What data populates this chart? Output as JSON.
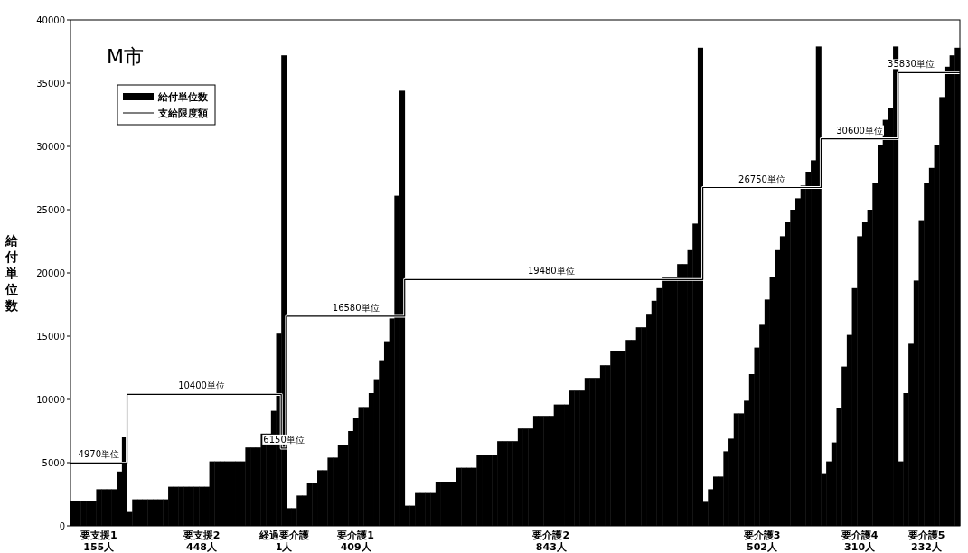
{
  "chart_data": {
    "type": "bar",
    "title": "M市",
    "ylabel": "給付単位数",
    "ylim": [
      0,
      40000
    ],
    "yticks": [
      0,
      5000,
      10000,
      15000,
      20000,
      25000,
      30000,
      35000,
      40000
    ],
    "legend": "top left",
    "categories": [
      null,
      null,
      null,
      null,
      null,
      "要支援1\n155人",
      null,
      null,
      null,
      null,
      null,
      null,
      null,
      null,
      null,
      null,
      null,
      null,
      null,
      null,
      null,
      null,
      null,
      null,
      null,
      "要支援2\n448人",
      null,
      null,
      null,
      null,
      null,
      null,
      null,
      null,
      null,
      null,
      null,
      null,
      null,
      null,
      null,
      "経過要介護\n1人",
      null,
      null,
      null,
      null,
      null,
      null,
      null,
      null,
      null,
      null,
      null,
      null,
      null,
      "要介護1\n409人",
      null,
      null,
      null,
      null,
      null,
      null,
      null,
      null,
      null,
      null,
      null,
      null,
      null,
      null,
      null,
      null,
      null,
      null,
      null,
      null,
      null,
      null,
      null,
      null,
      null,
      null,
      null,
      null,
      null,
      null,
      null,
      null,
      null,
      null,
      null,
      null,
      null,
      "要介護2\n843人",
      null,
      null,
      null,
      null,
      null,
      null,
      null,
      null,
      null,
      null,
      null,
      null,
      null,
      null,
      null,
      null,
      null,
      null,
      null,
      null,
      null,
      null,
      null,
      null,
      null,
      null,
      null,
      null,
      null,
      null,
      null,
      null,
      null,
      null,
      null,
      null,
      null,
      null,
      null,
      null,
      "要介護3\n502人",
      null,
      null,
      null,
      null,
      null,
      null,
      null,
      null,
      null,
      null,
      null,
      null,
      null,
      null,
      null,
      null,
      null,
      null,
      "要介護4\n310人",
      null,
      null,
      null,
      null,
      null,
      null,
      null,
      null,
      null,
      null,
      null,
      null,
      "要介護5\n232人",
      null,
      null,
      null,
      null,
      null,
      null
    ],
    "series": [
      {
        "name": "給付単位数",
        "color": "#000000",
        "values": [
          2000,
          2000,
          2000,
          2000,
          2000,
          2900,
          2900,
          2900,
          2900,
          4300,
          7000,
          1100,
          2100,
          2100,
          2100,
          2100,
          2100,
          2100,
          2100,
          3100,
          3100,
          3100,
          3100,
          3100,
          3100,
          3100,
          3100,
          5100,
          5100,
          5100,
          5100,
          5100,
          5100,
          5100,
          6200,
          6200,
          6200,
          7300,
          7300,
          9100,
          15200,
          37200,
          1400,
          1400,
          2400,
          2400,
          3400,
          3400,
          4400,
          4400,
          5400,
          5400,
          6400,
          6400,
          7500,
          8500,
          9400,
          9400,
          10500,
          11600,
          13100,
          14600,
          16400,
          26100,
          34400,
          1600,
          1600,
          2600,
          2600,
          2600,
          2600,
          3500,
          3500,
          3500,
          3500,
          4600,
          4600,
          4600,
          4600,
          5600,
          5600,
          5600,
          5600,
          6700,
          6700,
          6700,
          6700,
          7700,
          7700,
          7700,
          8700,
          8700,
          8700,
          8700,
          9600,
          9600,
          9600,
          10700,
          10700,
          10700,
          11700,
          11700,
          11700,
          12700,
          12700,
          13800,
          13800,
          13800,
          14700,
          14700,
          15700,
          15700,
          16700,
          17800,
          18800,
          19700,
          19700,
          19700,
          20700,
          20700,
          21800,
          23900,
          37800,
          1900,
          2900,
          3900,
          3900,
          5900,
          6900,
          8900,
          8900,
          9900,
          12000,
          14100,
          15900,
          17900,
          19700,
          21800,
          22900,
          24000,
          25000,
          25900,
          26900,
          28000,
          28900,
          37900,
          4100,
          5100,
          6600,
          9300,
          12600,
          15100,
          18800,
          22900,
          24000,
          25000,
          27100,
          30100,
          32100,
          33000,
          37900,
          5100,
          10500,
          14400,
          19400,
          24100,
          27100,
          28300,
          30100,
          33900,
          36300,
          37200,
          37800
        ]
      },
      {
        "name": "支給限度額",
        "type": "step",
        "color": "#000000",
        "values": [
          4970,
          4970,
          4970,
          4970,
          4970,
          4970,
          4970,
          4970,
          4970,
          4970,
          4970,
          10400,
          10400,
          10400,
          10400,
          10400,
          10400,
          10400,
          10400,
          10400,
          10400,
          10400,
          10400,
          10400,
          10400,
          10400,
          10400,
          10400,
          10400,
          10400,
          10400,
          10400,
          10400,
          10400,
          10400,
          10400,
          10400,
          10400,
          10400,
          10400,
          10400,
          6150,
          16580,
          16580,
          16580,
          16580,
          16580,
          16580,
          16580,
          16580,
          16580,
          16580,
          16580,
          16580,
          16580,
          16580,
          16580,
          16580,
          16580,
          16580,
          16580,
          16580,
          16580,
          16580,
          16580,
          19480,
          19480,
          19480,
          19480,
          19480,
          19480,
          19480,
          19480,
          19480,
          19480,
          19480,
          19480,
          19480,
          19480,
          19480,
          19480,
          19480,
          19480,
          19480,
          19480,
          19480,
          19480,
          19480,
          19480,
          19480,
          19480,
          19480,
          19480,
          19480,
          19480,
          19480,
          19480,
          19480,
          19480,
          19480,
          19480,
          19480,
          19480,
          19480,
          19480,
          19480,
          19480,
          19480,
          19480,
          19480,
          19480,
          19480,
          19480,
          19480,
          19480,
          19480,
          19480,
          19480,
          19480,
          19480,
          19480,
          19480,
          19480,
          26750,
          26750,
          26750,
          26750,
          26750,
          26750,
          26750,
          26750,
          26750,
          26750,
          26750,
          26750,
          26750,
          26750,
          26750,
          26750,
          26750,
          26750,
          26750,
          26750,
          26750,
          26750,
          26750,
          30600,
          30600,
          30600,
          30600,
          30600,
          30600,
          30600,
          30600,
          30600,
          30600,
          30600,
          30600,
          30600,
          30600,
          30600,
          35830,
          35830,
          35830,
          35830,
          35830,
          35830,
          35830,
          35830,
          35830,
          35830,
          35830,
          35830
        ],
        "value_labels": [
          null,
          null,
          null,
          null,
          null,
          "4970単位",
          null,
          null,
          null,
          null,
          null,
          null,
          null,
          null,
          null,
          null,
          null,
          null,
          null,
          null,
          null,
          null,
          null,
          null,
          null,
          "10400単位",
          null,
          null,
          null,
          null,
          null,
          null,
          null,
          null,
          null,
          null,
          null,
          null,
          null,
          null,
          null,
          "6150単位",
          null,
          null,
          null,
          null,
          null,
          null,
          null,
          null,
          null,
          null,
          null,
          null,
          null,
          "16580単位",
          null,
          null,
          null,
          null,
          null,
          null,
          null,
          null,
          null,
          null,
          null,
          null,
          null,
          null,
          null,
          null,
          null,
          null,
          null,
          null,
          null,
          null,
          null,
          null,
          null,
          null,
          null,
          null,
          null,
          null,
          null,
          null,
          null,
          null,
          null,
          null,
          null,
          "19480単位",
          null,
          null,
          null,
          null,
          null,
          null,
          null,
          null,
          null,
          null,
          null,
          null,
          null,
          null,
          null,
          null,
          null,
          null,
          null,
          null,
          null,
          null,
          null,
          null,
          null,
          null,
          null,
          null,
          null,
          null,
          null,
          null,
          null,
          null,
          null,
          null,
          null,
          null,
          null,
          null,
          "26750単位",
          null,
          null,
          null,
          null,
          null,
          null,
          null,
          null,
          null,
          null,
          null,
          null,
          null,
          null,
          null,
          null,
          null,
          null,
          "30600単位",
          null,
          null,
          null,
          null,
          null,
          null,
          null,
          null,
          null,
          "35830単位",
          null,
          null,
          null,
          null,
          null,
          null,
          null,
          null,
          null
        ]
      }
    ]
  }
}
